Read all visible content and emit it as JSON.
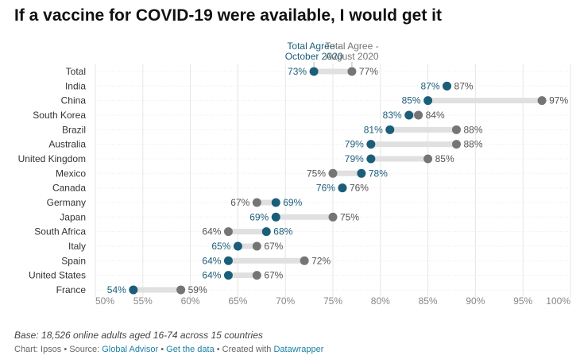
{
  "title": "If a vaccine for COVID-19 were available, I would get it",
  "colors": {
    "oct": "#1b5e7a",
    "aug": "#757575",
    "bar": "#e0e0e0",
    "grid": "#e6e6e6",
    "tick": "#888888",
    "link": "#1d81a2"
  },
  "notes": "Base: 18,526 online adults aged 16-74 across 15 countries",
  "credits": {
    "chart_prefix": "Chart: Ipsos • Source: ",
    "source": "Global Advisor",
    "sep": " • ",
    "get_data": "Get the data",
    "created": " • Created with ",
    "tool": "Datawrapper"
  },
  "chart_data": {
    "type": "dot-range",
    "title": "If a vaccine for COVID-19 were available, I would get it",
    "xlim": [
      50,
      100
    ],
    "ticks": [
      50,
      55,
      60,
      65,
      70,
      75,
      80,
      85,
      90,
      95,
      100
    ],
    "tick_labels": [
      "50%",
      "55%",
      "60%",
      "65%",
      "70%",
      "75%",
      "80%",
      "85%",
      "90%",
      "95%",
      "100%"
    ],
    "legend": {
      "oct": [
        "Total Agree -",
        "October 2020"
      ],
      "aug": [
        "Total Agree -",
        "August 2020"
      ]
    },
    "categories": [
      "Total",
      "India",
      "China",
      "South Korea",
      "Brazil",
      "Australia",
      "United Kingdom",
      "Mexico",
      "Canada",
      "Germany",
      "Japan",
      "South Africa",
      "Italy",
      "Spain",
      "United States",
      "France"
    ],
    "series": [
      {
        "name": "Total Agree - October 2020",
        "key": "oct",
        "values": [
          73,
          87,
          85,
          83,
          81,
          79,
          79,
          78,
          76,
          69,
          69,
          68,
          65,
          64,
          64,
          54
        ]
      },
      {
        "name": "Total Agree - August 2020",
        "key": "aug",
        "values": [
          77,
          87,
          97,
          84,
          88,
          88,
          85,
          75,
          76,
          67,
          75,
          64,
          67,
          72,
          67,
          59
        ]
      }
    ],
    "grid": true
  }
}
